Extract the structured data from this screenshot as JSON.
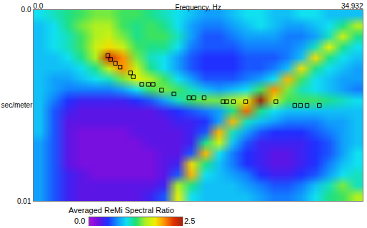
{
  "chart_data": {
    "type": "heatmap",
    "x_label": "Frequency, Hz",
    "y_label": "sec/meter",
    "xlim": [
      0,
      34.932
    ],
    "xticks": [
      {
        "value": 0,
        "label": "0.0"
      },
      34.932
    ],
    "ylim": [
      0,
      0.01
    ],
    "yticks": [
      {
        "value": 0,
        "label": "0.0"
      },
      0.01
    ],
    "cells": [
      [
        1.0,
        1.1,
        1.2,
        1.3,
        1.4,
        1.4,
        1.3,
        1.3,
        1.2,
        1.1,
        1.0,
        0.9,
        0.8,
        0.8,
        0.9,
        1.0,
        1.0,
        0.9,
        0.9,
        1.0,
        1.0,
        0.9,
        0.9,
        0.9
      ],
      [
        0.9,
        1.0,
        1.2,
        1.4,
        1.5,
        1.5,
        1.3,
        1.2,
        1.3,
        1.2,
        1.0,
        0.8,
        0.7,
        0.7,
        0.8,
        0.9,
        1.0,
        0.9,
        0.8,
        0.8,
        0.9,
        1.0,
        1.2,
        1.5
      ],
      [
        0.9,
        1.0,
        1.1,
        1.3,
        1.5,
        1.6,
        1.4,
        1.2,
        1.3,
        1.3,
        1.1,
        0.8,
        0.6,
        0.6,
        0.7,
        0.8,
        0.8,
        0.8,
        0.7,
        0.7,
        0.8,
        1.1,
        1.6,
        1.2
      ],
      [
        0.9,
        1.0,
        1.1,
        1.3,
        1.6,
        1.8,
        1.6,
        1.3,
        1.2,
        1.2,
        1.0,
        0.7,
        0.6,
        0.6,
        0.6,
        0.7,
        0.7,
        0.7,
        0.7,
        0.8,
        1.1,
        1.7,
        1.2,
        1.0
      ],
      [
        0.9,
        0.9,
        1.0,
        1.2,
        1.5,
        2.3,
        2.0,
        1.4,
        1.1,
        1.0,
        0.8,
        0.6,
        0.5,
        0.5,
        0.5,
        0.6,
        0.6,
        0.6,
        0.7,
        0.9,
        1.8,
        1.2,
        1.0,
        0.9
      ],
      [
        0.9,
        0.9,
        0.9,
        1.0,
        1.2,
        1.6,
        2.0,
        1.6,
        1.2,
        1.0,
        0.8,
        0.6,
        0.5,
        0.5,
        0.5,
        0.6,
        0.6,
        0.7,
        0.9,
        1.8,
        1.2,
        1.0,
        0.9,
        0.8
      ],
      [
        0.9,
        0.8,
        0.8,
        0.9,
        1.0,
        1.1,
        1.4,
        1.7,
        1.5,
        1.3,
        1.0,
        0.8,
        0.6,
        0.6,
        0.6,
        0.7,
        0.8,
        1.0,
        1.9,
        1.3,
        1.0,
        0.9,
        0.8,
        0.8
      ],
      [
        0.9,
        0.8,
        0.7,
        0.7,
        0.7,
        0.7,
        0.8,
        1.0,
        1.3,
        1.4,
        1.3,
        1.1,
        0.9,
        0.8,
        0.9,
        1.0,
        1.3,
        2.0,
        1.4,
        1.1,
        1.0,
        0.9,
        0.8,
        0.7
      ],
      [
        0.9,
        0.7,
        0.5,
        0.4,
        0.4,
        0.4,
        0.4,
        0.5,
        0.6,
        0.8,
        1.1,
        1.3,
        1.4,
        1.4,
        1.5,
        1.7,
        2.5,
        1.6,
        1.3,
        1.3,
        1.3,
        1.2,
        1.1,
        1.0
      ],
      [
        0.9,
        0.6,
        0.4,
        0.3,
        0.3,
        0.3,
        0.3,
        0.3,
        0.3,
        0.4,
        0.5,
        0.6,
        0.7,
        0.8,
        1.2,
        2.1,
        1.2,
        1.0,
        0.9,
        0.9,
        0.9,
        0.9,
        0.9,
        0.9
      ],
      [
        0.9,
        0.6,
        0.3,
        0.3,
        0.3,
        0.3,
        0.3,
        0.3,
        0.3,
        0.3,
        0.4,
        0.4,
        0.5,
        0.8,
        1.9,
        1.1,
        0.9,
        0.8,
        0.7,
        0.7,
        0.7,
        0.8,
        0.8,
        0.9
      ],
      [
        0.9,
        0.6,
        0.3,
        0.2,
        0.2,
        0.2,
        0.2,
        0.3,
        0.3,
        0.3,
        0.3,
        0.4,
        0.6,
        1.9,
        1.1,
        0.8,
        0.6,
        0.5,
        0.5,
        0.5,
        0.6,
        0.7,
        0.8,
        0.9
      ],
      [
        0.8,
        0.6,
        0.3,
        0.2,
        0.2,
        0.2,
        0.2,
        0.2,
        0.3,
        0.3,
        0.3,
        0.4,
        1.2,
        1.6,
        0.9,
        0.6,
        0.4,
        0.4,
        0.4,
        0.4,
        0.5,
        0.6,
        0.8,
        0.9
      ],
      [
        0.8,
        0.6,
        0.3,
        0.2,
        0.2,
        0.2,
        0.2,
        0.2,
        0.2,
        0.3,
        0.3,
        0.6,
        1.9,
        1.0,
        0.7,
        0.5,
        0.4,
        0.3,
        0.3,
        0.4,
        0.5,
        0.6,
        0.8,
        1.0
      ],
      [
        0.8,
        0.6,
        0.3,
        0.2,
        0.2,
        0.2,
        0.2,
        0.2,
        0.2,
        0.3,
        0.4,
        1.8,
        1.2,
        0.9,
        0.7,
        0.5,
        0.4,
        0.3,
        0.3,
        0.4,
        0.5,
        0.7,
        0.9,
        1.0
      ],
      [
        0.8,
        0.6,
        0.4,
        0.3,
        0.2,
        0.2,
        0.2,
        0.2,
        0.2,
        0.3,
        0.6,
        1.9,
        1.0,
        0.9,
        0.8,
        0.7,
        0.5,
        0.4,
        0.4,
        0.5,
        0.6,
        0.8,
        1.0,
        1.1
      ],
      [
        0.8,
        0.6,
        0.4,
        0.3,
        0.3,
        0.3,
        0.3,
        0.3,
        0.3,
        0.4,
        1.5,
        1.2,
        0.9,
        0.9,
        0.9,
        0.8,
        0.7,
        0.6,
        0.6,
        0.7,
        0.9,
        1.1,
        1.4,
        1.1
      ],
      [
        0.8,
        0.6,
        0.4,
        0.3,
        0.3,
        0.3,
        0.3,
        0.3,
        0.4,
        0.6,
        1.7,
        1.0,
        0.9,
        0.9,
        0.9,
        0.9,
        0.8,
        0.7,
        0.7,
        0.8,
        1.0,
        1.2,
        1.3,
        1.5
      ]
    ],
    "colorbar": {
      "label": "Averaged ReMi Spectral Ratio",
      "range": [
        0,
        2.5
      ],
      "ticks": [
        {
          "value": 0,
          "label": "0.0"
        },
        2.5
      ]
    },
    "points": {
      "x": [
        7.9,
        8.2,
        8.7,
        9.2,
        10.3,
        10.6,
        11.5,
        12.2,
        12.7,
        13.6,
        14.9,
        16.5,
        17.0,
        18.1,
        20.1,
        20.5,
        21.2,
        22.5,
        25.7,
        27.7,
        28.3,
        29.0,
        30.3
      ],
      "y": [
        0.0024,
        0.0026,
        0.0028,
        0.003,
        0.0033,
        0.0035,
        0.0039,
        0.0039,
        0.0039,
        0.0042,
        0.0044,
        0.0046,
        0.0046,
        0.0046,
        0.0048,
        0.0048,
        0.0048,
        0.0048,
        0.0048,
        0.005,
        0.005,
        0.005,
        0.005
      ],
      "marker": "square",
      "color": "#000000"
    }
  }
}
